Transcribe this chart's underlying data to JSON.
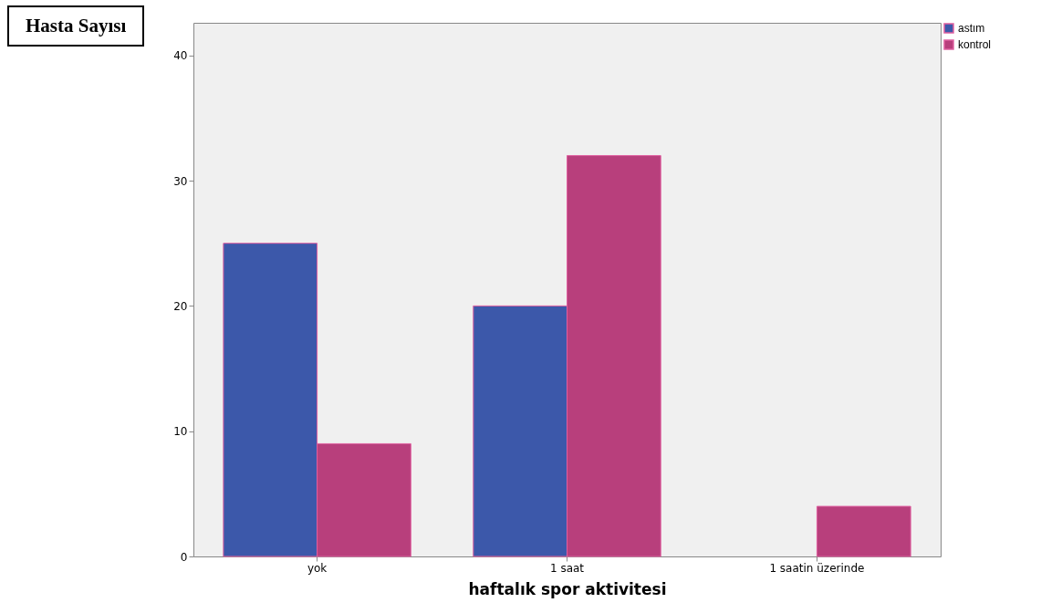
{
  "chart_data": {
    "type": "bar",
    "ylabel": "Hasta Sayısı",
    "xlabel": "haftalık spor aktivitesi",
    "categories": [
      "yok",
      "1 saat",
      "1 saatin üzerinde"
    ],
    "series": [
      {
        "name": "astım",
        "color": "#3c58aa",
        "values": [
          25,
          20,
          null
        ]
      },
      {
        "name": "kontrol",
        "color": "#b83f7c",
        "values": [
          9,
          32,
          4
        ]
      }
    ],
    "ylim": [
      0,
      42.6
    ],
    "yticks": [
      0,
      10,
      20,
      30,
      40
    ],
    "grid": false,
    "legend": "top right"
  }
}
